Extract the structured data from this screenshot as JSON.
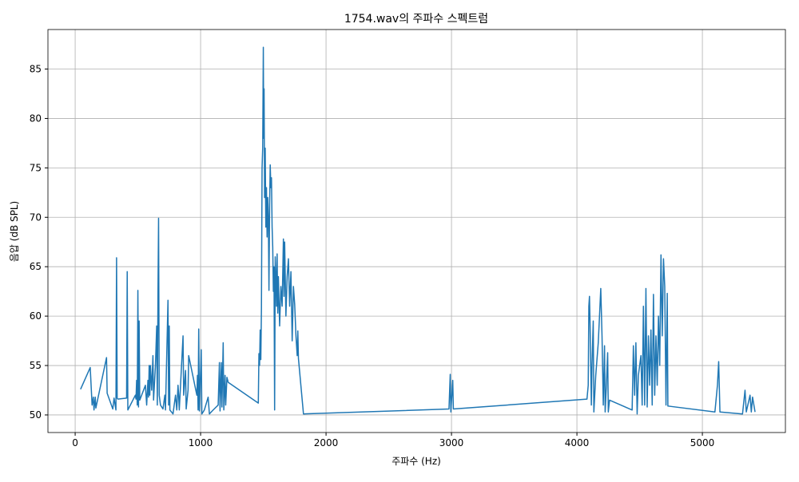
{
  "chart_data": {
    "type": "line",
    "title": "1754.wav의 주파수 스펙트럼",
    "x_label": "주파수 (Hz)",
    "y_label": "음압 (dB SPL)",
    "color": "#1f77b4",
    "grid": true,
    "x": [
      43,
      120,
      135,
      145,
      150,
      160,
      165,
      250,
      255,
      300,
      310,
      325,
      330,
      335,
      340,
      410,
      415,
      420,
      480,
      485,
      490,
      495,
      500,
      505,
      510,
      515,
      560,
      570,
      580,
      585,
      590,
      595,
      600,
      610,
      620,
      625,
      640,
      650,
      655,
      660,
      665,
      670,
      680,
      700,
      715,
      720,
      740,
      745,
      750,
      755,
      780,
      800,
      810,
      820,
      825,
      830,
      860,
      865,
      880,
      885,
      900,
      905,
      970,
      975,
      980,
      985,
      990,
      1005,
      1010,
      1030,
      1060,
      1070,
      1100,
      1140,
      1150,
      1155,
      1165,
      1170,
      1180,
      1185,
      1195,
      1200,
      1210,
      1220,
      1460,
      1465,
      1470,
      1475,
      1480,
      1485,
      1490,
      1495,
      1500,
      1503,
      1506,
      1510,
      1515,
      1520,
      1525,
      1530,
      1535,
      1540,
      1545,
      1550,
      1555,
      1560,
      1565,
      1570,
      1575,
      1580,
      1585,
      1590,
      1595,
      1600,
      1605,
      1610,
      1615,
      1620,
      1630,
      1640,
      1650,
      1660,
      1665,
      1670,
      1680,
      1690,
      1700,
      1710,
      1720,
      1730,
      1740,
      1750,
      1760,
      1770,
      1775,
      1780,
      1820,
      2980,
      2990,
      2995,
      3010,
      3015,
      4080,
      4090,
      4095,
      4100,
      4105,
      4115,
      4120,
      4130,
      4135,
      4150,
      4170,
      4180,
      4190,
      4200,
      4210,
      4220,
      4225,
      4235,
      4245,
      4250,
      4260,
      4440,
      4450,
      4460,
      4470,
      4480,
      4490,
      4510,
      4520,
      4530,
      4540,
      4550,
      4560,
      4570,
      4580,
      4590,
      4600,
      4610,
      4620,
      4630,
      4640,
      4650,
      4660,
      4670,
      4680,
      4690,
      4700,
      4710,
      4720,
      4725,
      5100,
      5120,
      5130,
      5140,
      5320,
      5340,
      5350,
      5380,
      5390,
      5400,
      5420
    ],
    "values": [
      52.6,
      54.8,
      51,
      51.8,
      50.5,
      51.8,
      50.7,
      55.8,
      52.2,
      50.6,
      51.7,
      50.5,
      65.9,
      51.7,
      51.6,
      51.7,
      64.5,
      50.5,
      52,
      51.6,
      53.5,
      51,
      62.6,
      50.8,
      59.5,
      51.5,
      53,
      51,
      53.5,
      51.8,
      55,
      52,
      55,
      52.5,
      56,
      51.5,
      55,
      59,
      51,
      62,
      69.9,
      52,
      51,
      50.6,
      52,
      50.5,
      61.6,
      51,
      59,
      50.5,
      50.1,
      52,
      50.5,
      53,
      52,
      50.5,
      58,
      52,
      54.5,
      50.6,
      52.5,
      56,
      52,
      54,
      50.5,
      58.7,
      50.4,
      56.6,
      50.1,
      50.5,
      51.8,
      50.1,
      50.5,
      51,
      55.3,
      50.4,
      55.3,
      50.8,
      57.3,
      50.5,
      54,
      51,
      53.8,
      53.3,
      51.2,
      56.2,
      55,
      58.6,
      55.6,
      60.8,
      75,
      77,
      87.2,
      78,
      83,
      72,
      77,
      69,
      73,
      68,
      72,
      70,
      62.6,
      71.2,
      75.3,
      73,
      74,
      69,
      67,
      62.5,
      65,
      50.5,
      66,
      64,
      61,
      66.3,
      60.3,
      64,
      59,
      63,
      61,
      67.8,
      62,
      67.5,
      60,
      64,
      65.8,
      61,
      64.5,
      57.5,
      63,
      61.2,
      58,
      56,
      58.5,
      55.7,
      50.1,
      50.6,
      54.1,
      50.3,
      53.5,
      50.6,
      51.6,
      53,
      61,
      62,
      59,
      51,
      55,
      59.5,
      50.3,
      54,
      57.3,
      60,
      62.8,
      58,
      51,
      57,
      50.3,
      53,
      56.3,
      50.3,
      51.5,
      50.5,
      57,
      52,
      57.3,
      50.1,
      54,
      56,
      51,
      61,
      51,
      62.8,
      50.8,
      58,
      53,
      58.6,
      51,
      62.2,
      52,
      58,
      53,
      60,
      55,
      66.2,
      58,
      65.8,
      63,
      51,
      62.3,
      50.9,
      50.3,
      53,
      55.4,
      50.3,
      50.1,
      52.5,
      50.3,
      52,
      50.3,
      51.8,
      50.3
    ],
    "xlim": [
      -217,
      5662
    ],
    "ylim": [
      48.22,
      89.0
    ],
    "xticks": [
      0,
      1000,
      2000,
      3000,
      4000,
      5000
    ],
    "yticks": [
      50,
      55,
      60,
      65,
      70,
      75,
      80,
      85
    ]
  }
}
